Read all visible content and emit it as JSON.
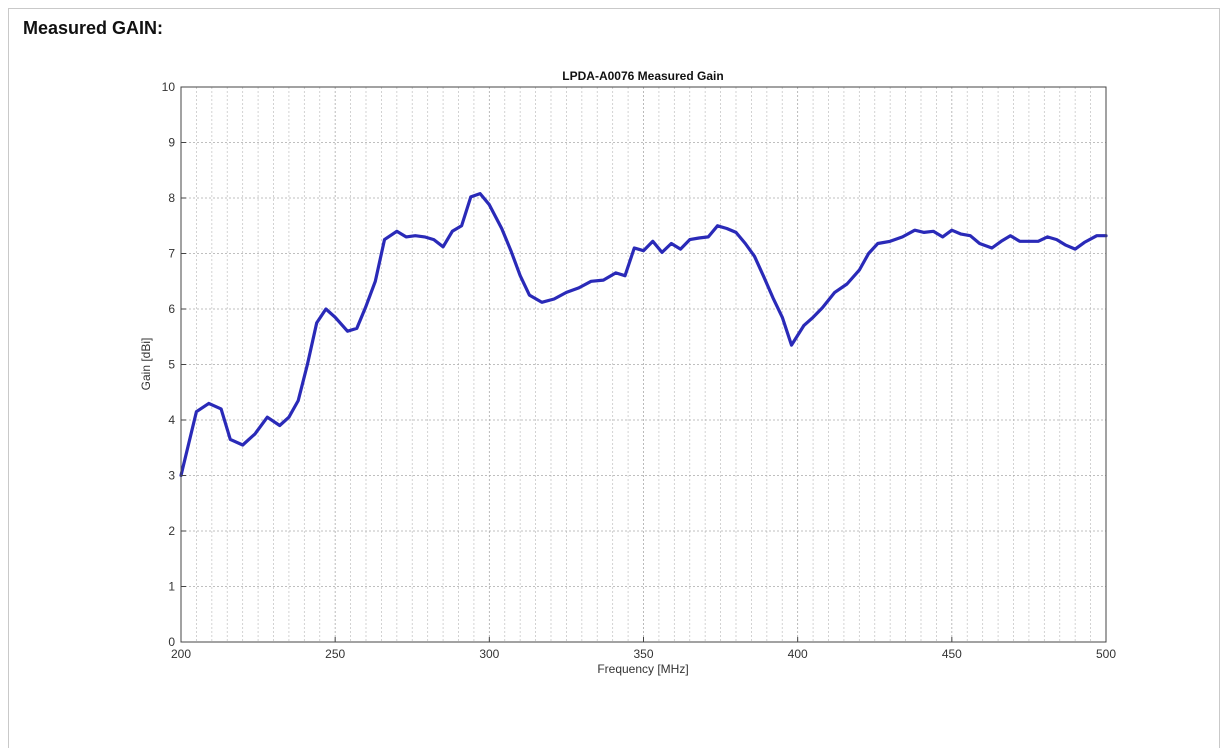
{
  "page": {
    "heading": "Measured GAIN:"
  },
  "chart_data": {
    "type": "line",
    "title": "LPDA-A0076 Measured Gain",
    "xlabel": "Frequency [MHz]",
    "ylabel": "Gain [dBi]",
    "xlim": [
      200,
      500
    ],
    "ylim": [
      0,
      10
    ],
    "xticks": [
      200,
      250,
      300,
      350,
      400,
      450,
      500
    ],
    "yticks": [
      0,
      1,
      2,
      3,
      4,
      5,
      6,
      7,
      8,
      9,
      10
    ],
    "minor_x_step": 5,
    "grid": true,
    "line_color": "#2a2ab8",
    "series": [
      {
        "x": [
          200,
          205,
          209,
          213,
          216,
          220,
          224,
          228,
          232,
          235,
          238,
          241,
          244,
          247,
          250,
          254,
          257,
          260,
          263,
          266,
          270,
          273,
          276,
          279,
          282,
          285,
          288,
          291,
          294,
          297,
          300,
          304,
          307,
          310,
          313,
          317,
          321,
          325,
          329,
          333,
          337,
          341,
          344,
          347,
          350,
          353,
          356,
          359,
          362,
          365,
          368,
          371,
          374,
          377,
          380,
          383,
          386,
          389,
          392,
          395,
          398,
          402,
          405,
          408,
          412,
          416,
          420,
          423,
          426,
          430,
          434,
          438,
          441,
          444,
          447,
          450,
          453,
          456,
          459,
          463,
          466,
          469,
          472,
          475,
          478,
          481,
          484,
          487,
          490,
          493,
          497,
          500
        ],
        "y": [
          3.0,
          4.15,
          4.3,
          4.2,
          3.65,
          3.55,
          3.75,
          4.05,
          3.9,
          4.05,
          4.35,
          5.0,
          5.75,
          6.0,
          5.85,
          5.6,
          5.65,
          6.05,
          6.5,
          7.25,
          7.4,
          7.3,
          7.32,
          7.3,
          7.25,
          7.12,
          7.4,
          7.5,
          8.02,
          8.08,
          7.88,
          7.45,
          7.05,
          6.6,
          6.25,
          6.12,
          6.18,
          6.3,
          6.38,
          6.5,
          6.52,
          6.65,
          6.6,
          7.1,
          7.05,
          7.22,
          7.02,
          7.18,
          7.08,
          7.25,
          7.28,
          7.3,
          7.5,
          7.45,
          7.38,
          7.18,
          6.95,
          6.58,
          6.2,
          5.85,
          5.35,
          5.7,
          5.85,
          6.02,
          6.3,
          6.45,
          6.7,
          7.0,
          7.18,
          7.22,
          7.3,
          7.42,
          7.38,
          7.4,
          7.3,
          7.42,
          7.35,
          7.32,
          7.18,
          7.1,
          7.22,
          7.32,
          7.22,
          7.22,
          7.22,
          7.3,
          7.25,
          7.15,
          7.08,
          7.2,
          7.32,
          7.32
        ]
      }
    ]
  }
}
